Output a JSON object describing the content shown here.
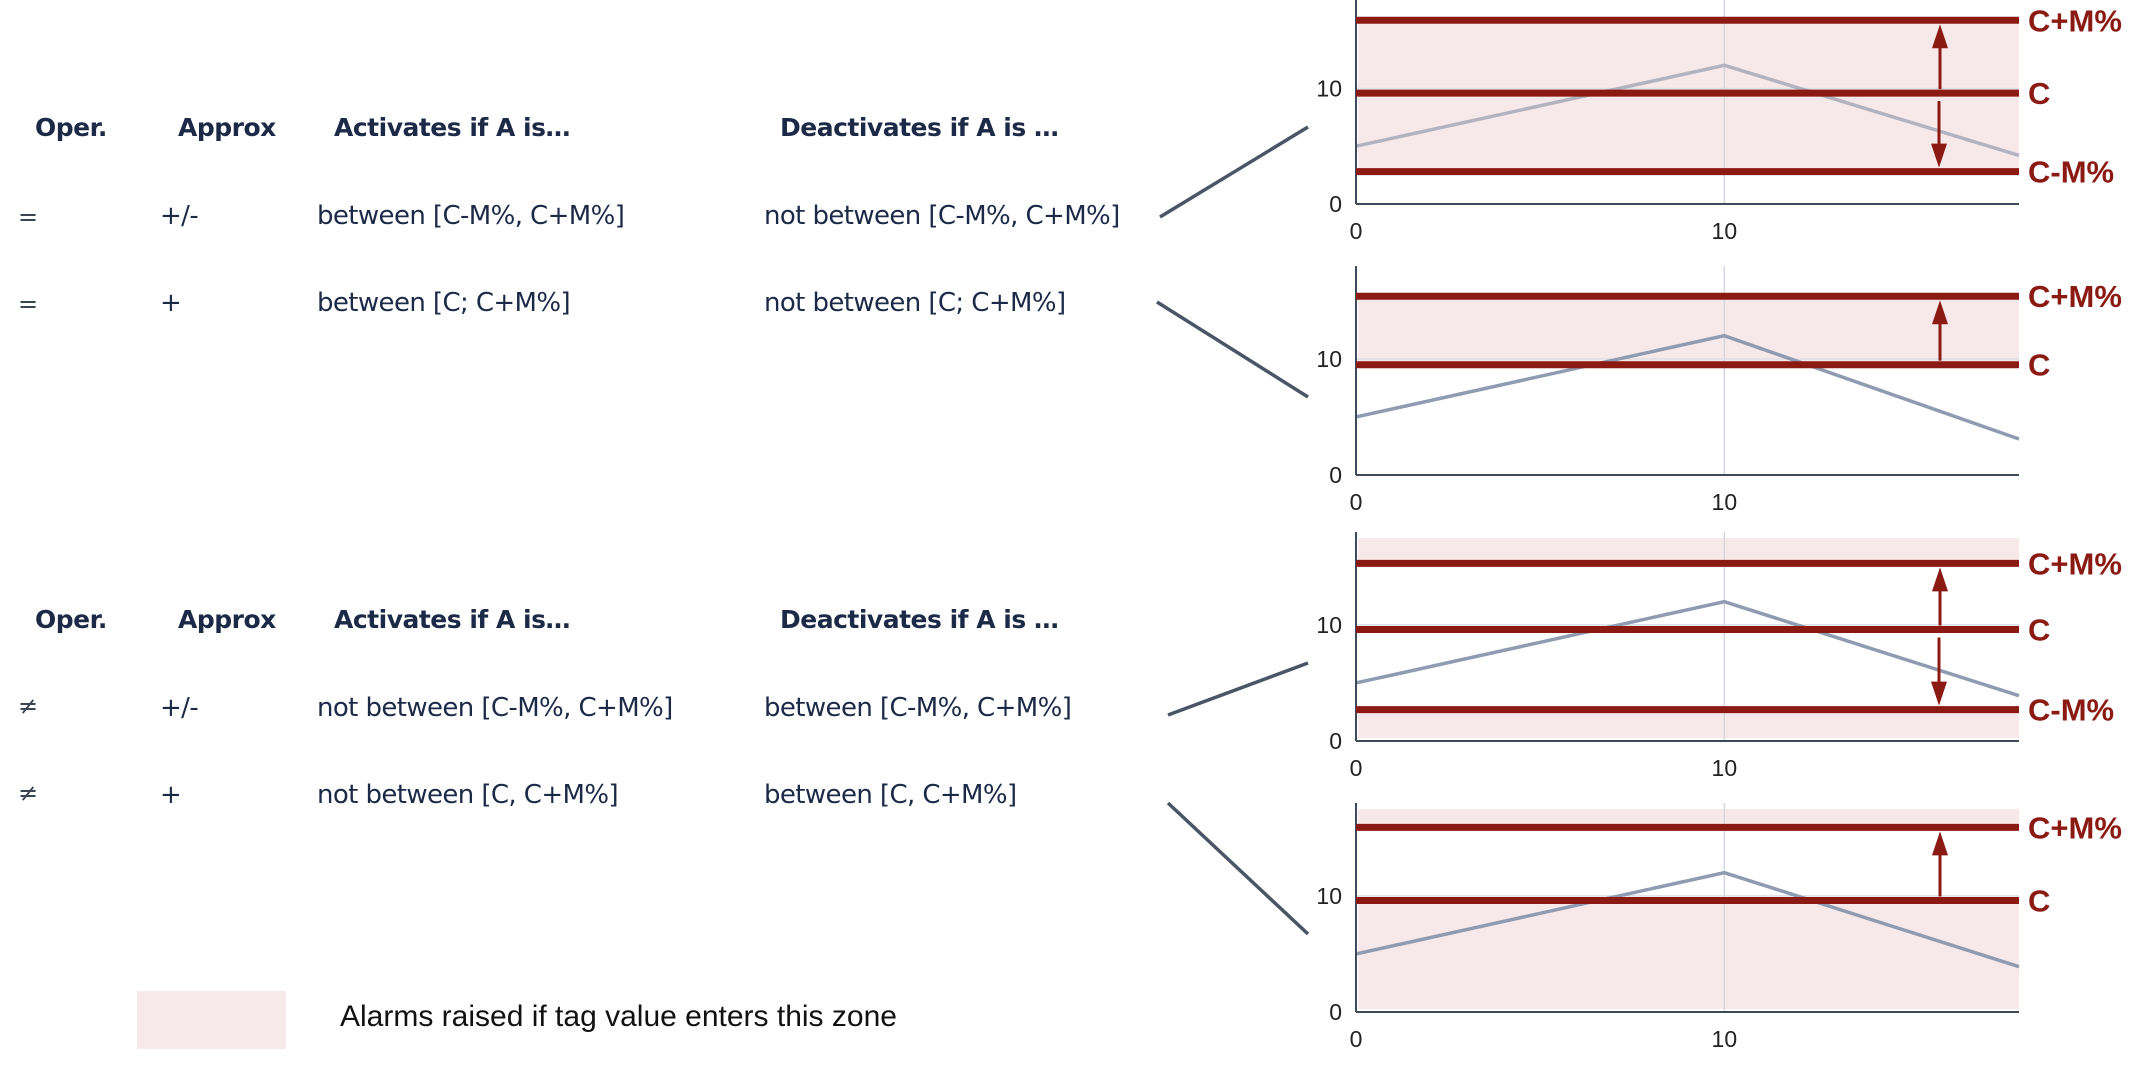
{
  "tables": [
    {
      "headers": [
        "Oper.",
        "Approx",
        "Activates if A is…",
        "Deactivates if A is …"
      ],
      "rows": [
        {
          "oper": "=",
          "approx": "+/-",
          "activates": "between [C-M%, C+M%]",
          "deactivates": "not between [C-M%, C+M%]"
        },
        {
          "oper": "=",
          "approx": "+",
          "activates": "between [C; C+M%]",
          "deactivates": "not between [C; C+M%]"
        }
      ]
    },
    {
      "headers": [
        "Oper.",
        "Approx",
        "Activates if A is…",
        "Deactivates if A is …"
      ],
      "rows": [
        {
          "oper": "≠",
          "approx": "+/-",
          "activates": "not between [C-M%, C+M%]",
          "deactivates": "between [C-M%, C+M%]"
        },
        {
          "oper": "≠",
          "approx": "+",
          "activates": "not between [C, C+M%]",
          "deactivates": "between [C, C+M%]"
        }
      ]
    }
  ],
  "legend": {
    "label": "Alarms raised if tag value enters this zone",
    "color": "#f7e9ea"
  },
  "colors": {
    "threshold": "#8b1a12",
    "tag": "#8e9bb0",
    "tag_faded": "#b3b3c0",
    "axis": "#3d4a5c",
    "zone": "#f7e9ea",
    "connector": "#4a5566"
  },
  "chart_data": [
    {
      "type": "line",
      "title": "= +/-",
      "x_ticks": [
        "0",
        "10"
      ],
      "y_ticks": [
        "0",
        "10"
      ],
      "xlim": [
        0,
        18
      ],
      "ylim": [
        0,
        18
      ],
      "series": [
        {
          "name": "tag",
          "x": [
            0,
            10,
            18
          ],
          "y": [
            5,
            12,
            4.2
          ]
        }
      ],
      "thresholds": [
        {
          "label": "C+M%",
          "y": 15.9
        },
        {
          "label": "C",
          "y": 9.6
        },
        {
          "label": "C-M%",
          "y": 2.8
        }
      ],
      "alarm_zones": [
        [
          2.8,
          15.9
        ]
      ],
      "arrows": [
        "up",
        "down"
      ]
    },
    {
      "type": "line",
      "title": "= +",
      "x_ticks": [
        "0",
        "10"
      ],
      "y_ticks": [
        "0",
        "10"
      ],
      "xlim": [
        0,
        18
      ],
      "ylim": [
        0,
        18
      ],
      "series": [
        {
          "name": "tag",
          "x": [
            0,
            10,
            18
          ],
          "y": [
            5,
            12,
            3.1
          ]
        }
      ],
      "thresholds": [
        {
          "label": "C+M%",
          "y": 15.4
        },
        {
          "label": "C",
          "y": 9.5
        }
      ],
      "alarm_zones": [
        [
          9.5,
          15.4
        ]
      ],
      "arrows": [
        "up"
      ]
    },
    {
      "type": "line",
      "title": "≠ +/-",
      "x_ticks": [
        "0",
        "10"
      ],
      "y_ticks": [
        "0",
        "10"
      ],
      "xlim": [
        0,
        18
      ],
      "ylim": [
        0,
        18
      ],
      "series": [
        {
          "name": "tag",
          "x": [
            0,
            10,
            18
          ],
          "y": [
            5,
            12,
            3.9
          ]
        }
      ],
      "thresholds": [
        {
          "label": "C+M%",
          "y": 15.3
        },
        {
          "label": "C",
          "y": 9.6
        },
        {
          "label": "C-M%",
          "y": 2.7
        }
      ],
      "alarm_zones": [
        [
          0,
          2.7
        ],
        [
          15.3,
          18
        ]
      ],
      "arrows": [
        "up",
        "down"
      ]
    },
    {
      "type": "line",
      "title": "≠ +",
      "x_ticks": [
        "0",
        "10"
      ],
      "y_ticks": [
        "0",
        "10"
      ],
      "xlim": [
        0,
        18
      ],
      "ylim": [
        0,
        18
      ],
      "series": [
        {
          "name": "tag",
          "x": [
            0,
            10,
            18
          ],
          "y": [
            5,
            12,
            3.9
          ]
        }
      ],
      "thresholds": [
        {
          "label": "C+M%",
          "y": 15.9
        },
        {
          "label": "C",
          "y": 9.6
        }
      ],
      "alarm_zones": [
        [
          0,
          9.6
        ],
        [
          15.9,
          18
        ]
      ],
      "arrows": [
        "up"
      ]
    }
  ]
}
